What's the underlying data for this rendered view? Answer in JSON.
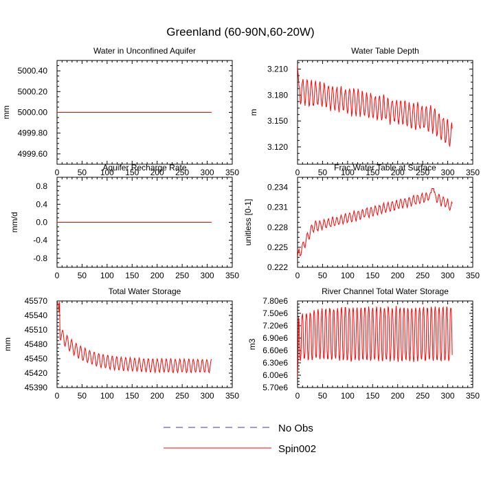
{
  "figure_title": "Greenland (60-90N,60-20W)",
  "chart_data": [
    {
      "type": "line",
      "title": "Water in Unconfined Aquifer",
      "ylabel": "mm",
      "xlim": [
        0,
        350
      ],
      "ylim": [
        4999.5,
        5000.5
      ],
      "xticks": [
        0,
        50,
        100,
        150,
        200,
        250,
        300,
        350
      ],
      "xtick_labels": [
        "0",
        "50",
        "100",
        "150",
        "200",
        "250",
        "300",
        "350"
      ],
      "yticks": [
        4999.6,
        4999.8,
        5000.0,
        5000.2,
        5000.4
      ],
      "ytick_labels": [
        "4999.60",
        "4999.80",
        "5000.00",
        "5000.20",
        "5000.40"
      ],
      "series": [
        {
          "name": "Spin002",
          "color": "#ff0000",
          "gen": {
            "kind": "flat",
            "value": 5000.0,
            "n": 310
          }
        }
      ]
    },
    {
      "type": "line",
      "title": "Water Table Depth",
      "ylabel": "m",
      "xlim": [
        0,
        350
      ],
      "ylim": [
        3.1,
        3.22
      ],
      "xticks": [
        0,
        50,
        100,
        150,
        200,
        250,
        300,
        350
      ],
      "xtick_labels": [
        "0",
        "50",
        "100",
        "150",
        "200",
        "250",
        "300",
        "350"
      ],
      "yticks": [
        3.12,
        3.15,
        3.18,
        3.21
      ],
      "ytick_labels": [
        "3.120",
        "3.150",
        "3.180",
        "3.210"
      ],
      "series": [
        {
          "name": "Spin002",
          "color": "#ff0000",
          "gen": {
            "kind": "wtd",
            "n": 310
          }
        }
      ]
    },
    {
      "type": "line",
      "title": "Aquifer Recharge Rate",
      "ylabel": "mm/d",
      "xlim": [
        0,
        350
      ],
      "ylim": [
        -1.0,
        1.0
      ],
      "xticks": [
        0,
        50,
        100,
        150,
        200,
        250,
        300,
        350
      ],
      "xtick_labels": [
        "0",
        "50",
        "100",
        "150",
        "200",
        "250",
        "300",
        "350"
      ],
      "yticks": [
        -0.8,
        -0.4,
        0.0,
        0.4,
        0.8
      ],
      "ytick_labels": [
        "-0.8",
        "-0.4",
        "0.0",
        "0.4",
        "0.8"
      ],
      "series": [
        {
          "name": "Spin002",
          "color": "#ff0000",
          "gen": {
            "kind": "flat",
            "value": 0.0,
            "n": 310
          }
        }
      ]
    },
    {
      "type": "line",
      "title": "Frac Water Table at Surface",
      "ylabel": "unitless [0-1]",
      "xlim": [
        0,
        350
      ],
      "ylim": [
        0.222,
        0.2355
      ],
      "xticks": [
        0,
        50,
        100,
        150,
        200,
        250,
        300,
        350
      ],
      "xtick_labels": [
        "0",
        "50",
        "100",
        "150",
        "200",
        "250",
        "300",
        "350"
      ],
      "yticks": [
        0.222,
        0.225,
        0.228,
        0.231,
        0.234
      ],
      "ytick_labels": [
        "0.222",
        "0.225",
        "0.228",
        "0.231",
        "0.234"
      ],
      "series": [
        {
          "name": "Spin002",
          "color": "#ff0000",
          "gen": {
            "kind": "frac",
            "n": 310
          }
        }
      ]
    },
    {
      "type": "line",
      "title": "Total Water Storage",
      "ylabel": "mm",
      "xlim": [
        0,
        350
      ],
      "ylim": [
        45390,
        45570
      ],
      "xticks": [
        0,
        50,
        100,
        150,
        200,
        250,
        300,
        350
      ],
      "xtick_labels": [
        "0",
        "50",
        "100",
        "150",
        "200",
        "250",
        "300",
        "350"
      ],
      "yticks": [
        45390,
        45420,
        45450,
        45480,
        45510,
        45540,
        45570
      ],
      "ytick_labels": [
        "45390",
        "45420",
        "45450",
        "45480",
        "45510",
        "45540",
        "45570"
      ],
      "series": [
        {
          "name": "Spin002",
          "color": "#ff0000",
          "gen": {
            "kind": "tws",
            "n": 310
          }
        }
      ]
    },
    {
      "type": "line",
      "title": "River Channel Total Water Storage",
      "ylabel": "m3",
      "xlim": [
        0,
        350
      ],
      "ylim": [
        5700000,
        7800000
      ],
      "xticks": [
        0,
        50,
        100,
        150,
        200,
        250,
        300,
        350
      ],
      "xtick_labels": [
        "0",
        "50",
        "100",
        "150",
        "200",
        "250",
        "300",
        "350"
      ],
      "yticks": [
        5700000,
        6000000,
        6300000,
        6600000,
        6900000,
        7200000,
        7500000,
        7800000
      ],
      "ytick_labels": [
        "5.70e6",
        "6.00e6",
        "6.30e6",
        "6.60e6",
        "6.90e6",
        "7.20e6",
        "7.50e6",
        "7.80e6"
      ],
      "series": [
        {
          "name": "Spin002",
          "color": "#ff0000",
          "gen": {
            "kind": "river",
            "n": 310
          }
        }
      ]
    }
  ],
  "legend": {
    "entries": [
      {
        "name": "No Obs",
        "color": "#3b3b9a",
        "dash": true
      },
      {
        "name": "Spin002",
        "color": "#ff0000",
        "dash": false
      }
    ]
  }
}
